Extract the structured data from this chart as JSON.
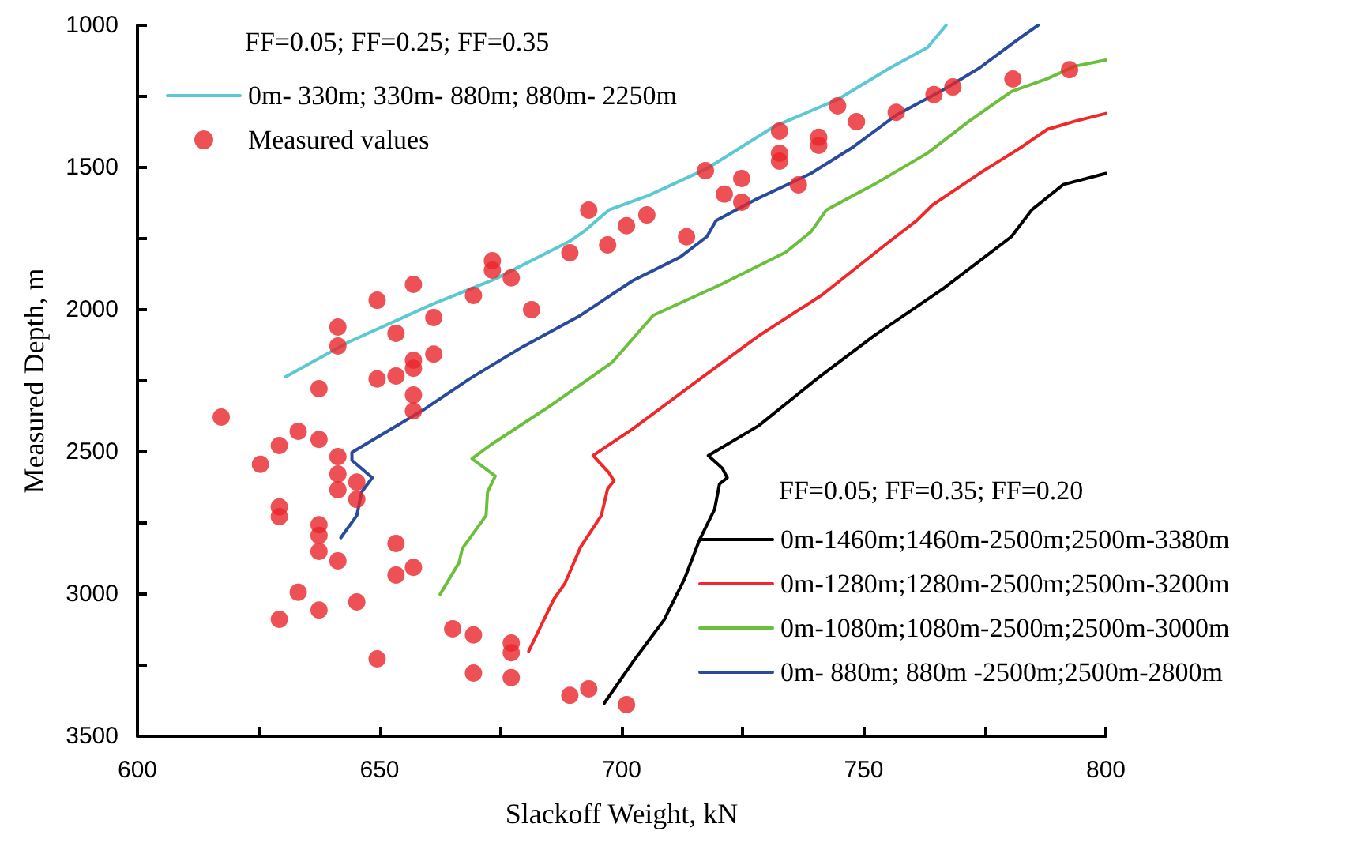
{
  "chart_data": {
    "type": "line",
    "xlabel": "Slackoff Weight, kN",
    "ylabel": "Measured Depth, m",
    "xlim": [
      600,
      800
    ],
    "xticks": [
      600,
      {
        "value": 625,
        "label": null
      },
      650,
      {
        "value": 675,
        "label": null
      },
      700,
      {
        "value": 725,
        "label": null
      },
      750,
      {
        "value": 775,
        "label": null
      },
      800
    ],
    "ylim": [
      3500,
      1000
    ],
    "yticks": [
      1000,
      {
        "value": 1250,
        "label": null
      },
      1500,
      {
        "value": 1750,
        "label": null
      },
      2000,
      {
        "value": 2250,
        "label": null
      },
      2500,
      {
        "value": 2750,
        "label": null
      },
      3000,
      {
        "value": 3250,
        "label": null
      },
      3500
    ],
    "grid": false,
    "legend": "bottom right",
    "marker": "none",
    "line_style": "solid",
    "annotations": [
      "FF=0.05; FF=0.25; FF=0.35",
      "FF=0.05; FF=0.35; FF=0.20"
    ],
    "series": [
      {
        "name": "0m- 330m; 330m- 880m; 880m- 2250m",
        "color": "#5bc8d2",
        "x": [
          630.6,
          643.6,
          660.9,
          673.9,
          689.3,
          692.5,
          697.4,
          705.5,
          717.6,
          731.6,
          744.6,
          755.4,
          763.2,
          767
        ],
        "values": [
          2236,
          2114,
          1981,
          1892,
          1759,
          1721,
          1649,
          1599,
          1504,
          1355,
          1261,
          1150,
          1078,
          1000
        ]
      },
      {
        "name": "Measured values",
        "type": "scatter",
        "marker": "circle",
        "color": "#e8262a",
        "x": [
          693.2,
          697.1,
          701.0,
          689.3,
          673.3,
          673.3,
          677.2,
          669.4,
          681.4,
          657.0,
          649.5,
          661.2,
          653.4,
          641.4,
          641.4,
          661.2,
          657.0,
          657.0,
          653.4,
          649.5,
          637.5,
          657.0,
          657.0,
          617.3,
          633.2,
          629.3,
          637.5,
          625.4,
          641.4,
          641.4,
          645.3,
          641.4,
          645.3,
          629.3,
          629.3,
          637.5,
          637.5,
          637.5,
          641.4,
          653.4,
          653.4,
          657.0,
          633.2,
          645.3,
          637.5,
          629.3,
          649.5,
          665.1,
          669.4,
          677.2,
          677.2,
          669.4,
          677.2,
          689.3,
          693.2,
          701.0,
          792.5,
          780.8,
          768.4,
          764.5,
          756.7,
          744.6,
          748.5,
          740.7,
          740.7,
          732.6,
          732.6,
          732.6,
          736.5,
          717.3,
          724.8,
          721.2,
          724.8,
          705.2,
          713.4
        ],
        "values": [
          1650,
          1772,
          1705,
          1800,
          1828,
          1861,
          1888,
          1950,
          2000,
          1911,
          1967,
          2028,
          2083,
          2061,
          2128,
          2156,
          2178,
          2206,
          2233,
          2244,
          2278,
          2300,
          2356,
          2378,
          2428,
          2478,
          2456,
          2544,
          2517,
          2578,
          2606,
          2633,
          2667,
          2694,
          2728,
          2756,
          2794,
          2850,
          2883,
          2822,
          2933,
          2906,
          2994,
          3028,
          3056,
          3089,
          3228,
          3122,
          3144,
          3172,
          3206,
          3278,
          3294,
          3356,
          3333,
          3389,
          1156,
          1189,
          1217,
          1244,
          1306,
          1283,
          1339,
          1394,
          1422,
          1372,
          1450,
          1478,
          1561,
          1511,
          1539,
          1594,
          1622,
          1667,
          1744
        ]
      },
      {
        "name": "0m-1460m;1460m-2500m;2500m-3380m",
        "color": "#000000",
        "x": [
          696.4,
          702.3,
          708.8,
          713.0,
          716.0,
          719.2,
          720.2,
          721.8,
          720.8,
          717.9,
          728.3,
          740.4,
          752.1,
          766.4,
          780.5,
          784.7,
          791.2,
          800.0
        ],
        "values": [
          3384,
          3239,
          3090,
          2946,
          2813,
          2702,
          2613,
          2591,
          2558,
          2513,
          2408,
          2242,
          2092,
          1926,
          1743,
          1649,
          1560,
          1521
        ]
      },
      {
        "name": "0m-1280m;1280m-2500m;2500m-3200m",
        "color": "#f0282a",
        "x": [
          680.8,
          686.0,
          688.3,
          691.5,
          695.8,
          697.1,
          698.4,
          697.4,
          694.1,
          702.3,
          716.3,
          728.3,
          741.4,
          755.4,
          760.9,
          764.2,
          773.9,
          782.7,
          787.9,
          793.5,
          800.0
        ],
        "values": [
          3201,
          3018,
          2962,
          2835,
          2724,
          2630,
          2602,
          2574,
          2513,
          2419,
          2242,
          2092,
          1948,
          1759,
          1687,
          1632,
          1521,
          1427,
          1366,
          1338,
          1310
        ]
      },
      {
        "name": "0m-1080m;1080m-2500m;2500m-3000m",
        "color": "#6cbf3c",
        "x": [
          662.5,
          666.4,
          667.1,
          672.0,
          672.3,
          673.9,
          669.1,
          673.0,
          685.0,
          698.0,
          706.5,
          720.8,
          733.9,
          739.1,
          742.3,
          752.1,
          763.2,
          771.7,
          780.5,
          787.9,
          793.5,
          800.0
        ],
        "values": [
          3001,
          2890,
          2840,
          2724,
          2641,
          2585,
          2524,
          2475,
          2341,
          2186,
          2020,
          1909,
          1798,
          1726,
          1649,
          1560,
          1449,
          1338,
          1233,
          1188,
          1144,
          1122
        ]
      },
      {
        "name": "0m- 880m; 880m -2500m;2500m-2800m",
        "color": "#2a4a9c",
        "x": [
          642.0,
          645.3,
          646.3,
          648.5,
          644.3,
          644.3,
          649.2,
          659.0,
          668.7,
          679.5,
          691.5,
          702.3,
          712.1,
          717.6,
          719.5,
          727.4,
          739.1,
          747.9,
          756.7,
          766.4,
          773.9,
          782.7,
          786.0
        ],
        "values": [
          2802,
          2724,
          2641,
          2591,
          2530,
          2502,
          2452,
          2353,
          2242,
          2131,
          2020,
          1898,
          1815,
          1743,
          1687,
          1615,
          1521,
          1427,
          1316,
          1227,
          1150,
          1039,
          1000
        ]
      }
    ]
  }
}
